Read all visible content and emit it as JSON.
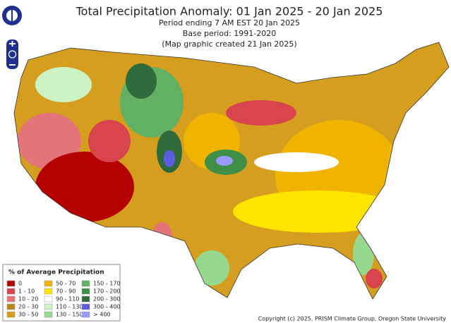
{
  "header": {
    "title": "Total Precipitation Anomaly: 01 Jan 2025 - 20 Jan 2025",
    "lines": [
      "Period ending 7 AM EST 20 Jan 2025",
      "Base period: 1991-2020",
      "(Map graphic created 21 Jan 2025)"
    ]
  },
  "legend": {
    "title": "% of Average Precipitation",
    "items": [
      {
        "label": "0",
        "color": "#b50000"
      },
      {
        "label": "1 - 10",
        "color": "#d8444c"
      },
      {
        "label": "10 - 20",
        "color": "#e4747a"
      },
      {
        "label": "20 - 30",
        "color": "#b9861a"
      },
      {
        "label": "30 - 50",
        "color": "#d69e1e"
      },
      {
        "label": "50 - 70",
        "color": "#f0b400"
      },
      {
        "label": "70 - 90",
        "color": "#ffe400"
      },
      {
        "label": "90 - 110",
        "color": "#ffffff"
      },
      {
        "label": "110 - 130",
        "color": "#cdf2c4"
      },
      {
        "label": "130 - 150",
        "color": "#96d88e"
      },
      {
        "label": "150 - 170",
        "color": "#62b064"
      },
      {
        "label": "170 - 200",
        "color": "#3f8f48"
      },
      {
        "label": "200 - 300",
        "color": "#2e6a3a"
      },
      {
        "label": "300 - 400",
        "color": "#5c5ce0"
      },
      {
        "label": "> 400",
        "color": "#9a9aff"
      }
    ]
  },
  "footer": {
    "copyright": "Copyright (c) 2025, PRISM Climate Group, Oregon State University"
  }
}
